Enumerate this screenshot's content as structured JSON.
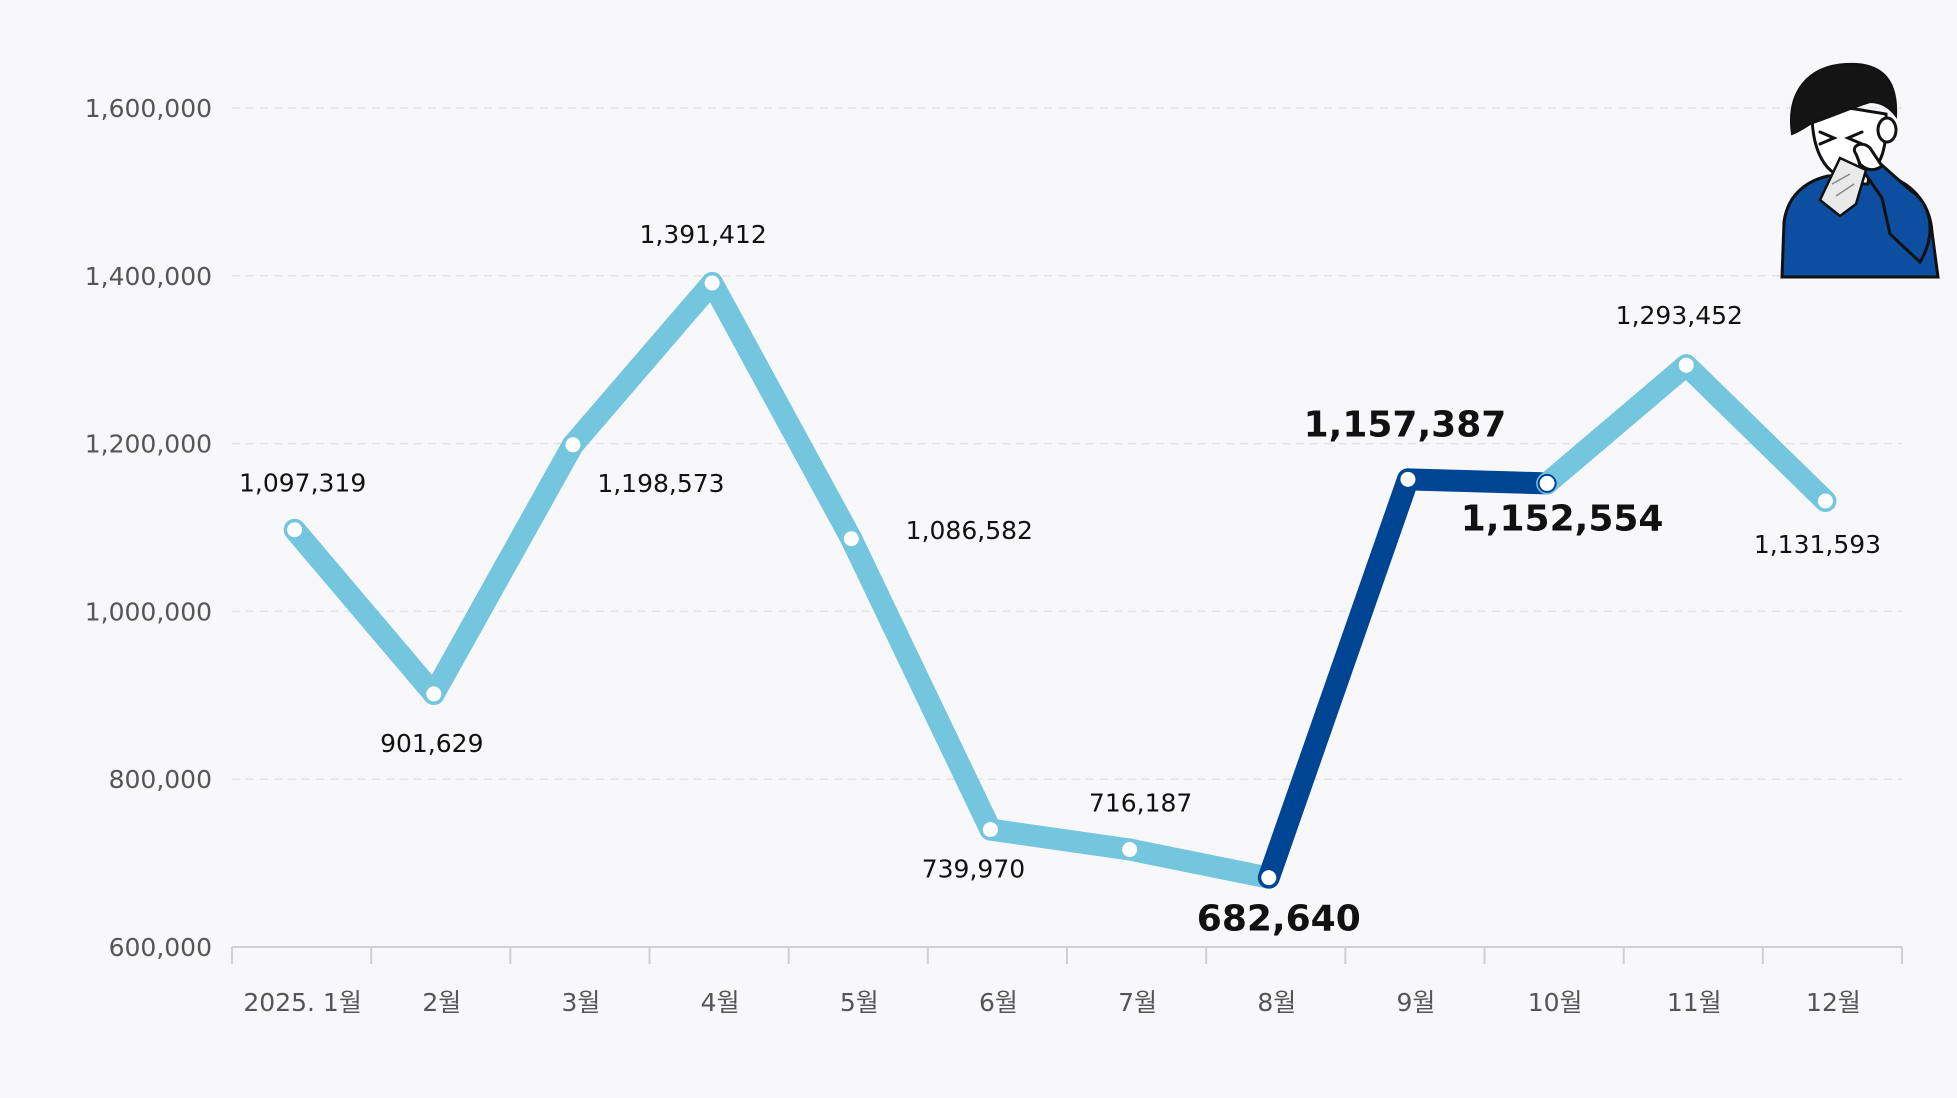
{
  "chart_data": {
    "type": "line",
    "categories": [
      "2025. 1월",
      "2월",
      "3월",
      "4월",
      "5월",
      "6월",
      "7월",
      "8월",
      "9월",
      "10월",
      "11월",
      "12월"
    ],
    "values": [
      1097319,
      901629,
      1198573,
      1391412,
      1086582,
      739970,
      716187,
      682640,
      1157387,
      1152554,
      1293452,
      1131593
    ],
    "value_labels": [
      "1,097,319",
      "901,629",
      "1,198,573",
      "1,391,412",
      "1,086,582",
      "739,970",
      "716,187",
      "682,640",
      "1,157,387",
      "1,152,554",
      "1,293,452",
      "1,131,593"
    ],
    "highlight_indices": [
      7,
      8,
      9
    ],
    "yticks": [
      600000,
      800000,
      1000000,
      1200000,
      1400000,
      1600000
    ],
    "ytick_labels": [
      "600,000",
      "800,000",
      "1,000,000",
      "1,200,000",
      "1,400,000",
      "1,600,000"
    ],
    "ylim": [
      600000,
      1650000
    ],
    "grid": true,
    "title": "",
    "xlabel": "",
    "ylabel": "",
    "colors": {
      "line": "#74c6de",
      "highlight": "#004494",
      "point_fill": "#ffffff",
      "grid": "#e2e2e6",
      "axis": "#cfcfd4",
      "background": "#f8f8fa"
    }
  },
  "decoration": {
    "icon": "person-sneezing-icon"
  }
}
